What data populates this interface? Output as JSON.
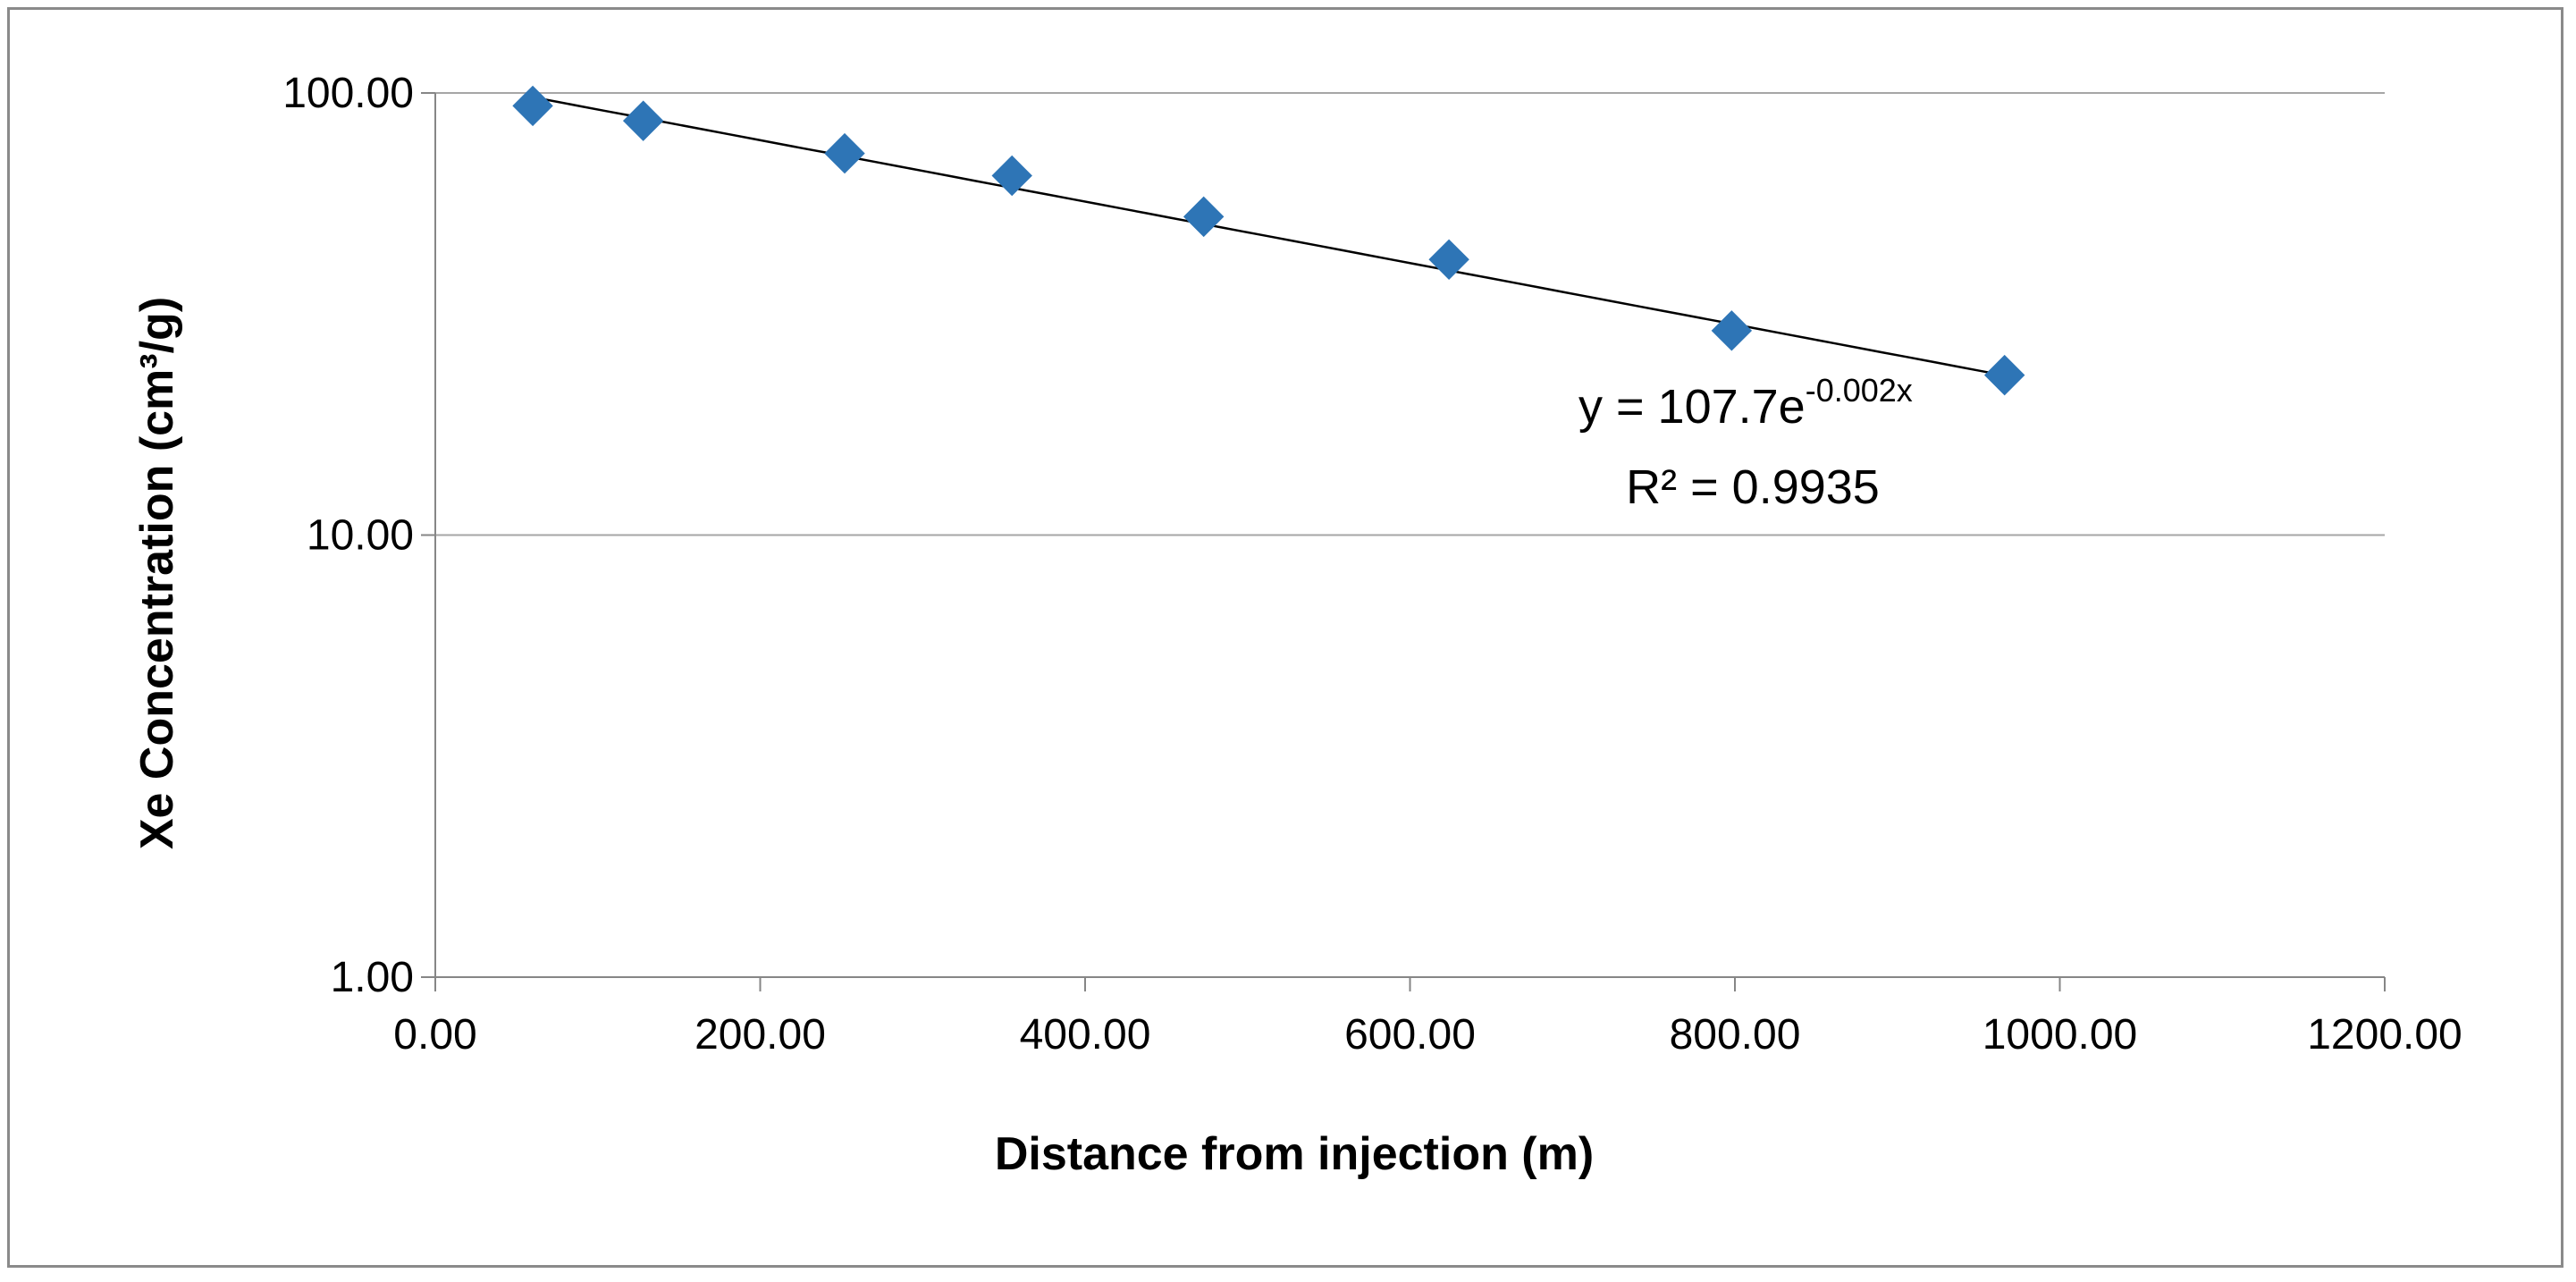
{
  "chart_data": {
    "type": "scatter",
    "title": "",
    "xlabel": "Distance from injection (m)",
    "ylabel": "Xe Concentration (cm³/g)",
    "xlim": [
      0,
      1200
    ],
    "ylim": [
      1,
      100
    ],
    "yscale": "log",
    "grid": "horizontal",
    "x_ticks": [
      0,
      200,
      400,
      600,
      800,
      1000,
      1200
    ],
    "x_tick_labels": [
      "0.00",
      "200.00",
      "400.00",
      "600.00",
      "800.00",
      "1000.00",
      "1200.00"
    ],
    "y_ticks": [
      1,
      10,
      100
    ],
    "y_tick_labels": [
      "1.00",
      "10.00",
      "100.00"
    ],
    "series": [
      {
        "name": "Xe Concentration",
        "marker": "diamond",
        "color": "#2e75b6",
        "x": [
          60,
          128,
          252,
          355,
          473,
          624,
          798,
          966
        ],
        "y": [
          93.5,
          86.5,
          73.0,
          65.0,
          52.5,
          42.0,
          29.0,
          23.0
        ]
      }
    ],
    "trendline": {
      "type": "exponential",
      "a": 107.7,
      "b": -0.0016,
      "x_range": [
        60,
        966
      ],
      "color": "#000000",
      "equation_main": "y = 107.7e",
      "equation_exponent": "-0.002x",
      "r_squared_label": "R² = 0.9935"
    }
  }
}
